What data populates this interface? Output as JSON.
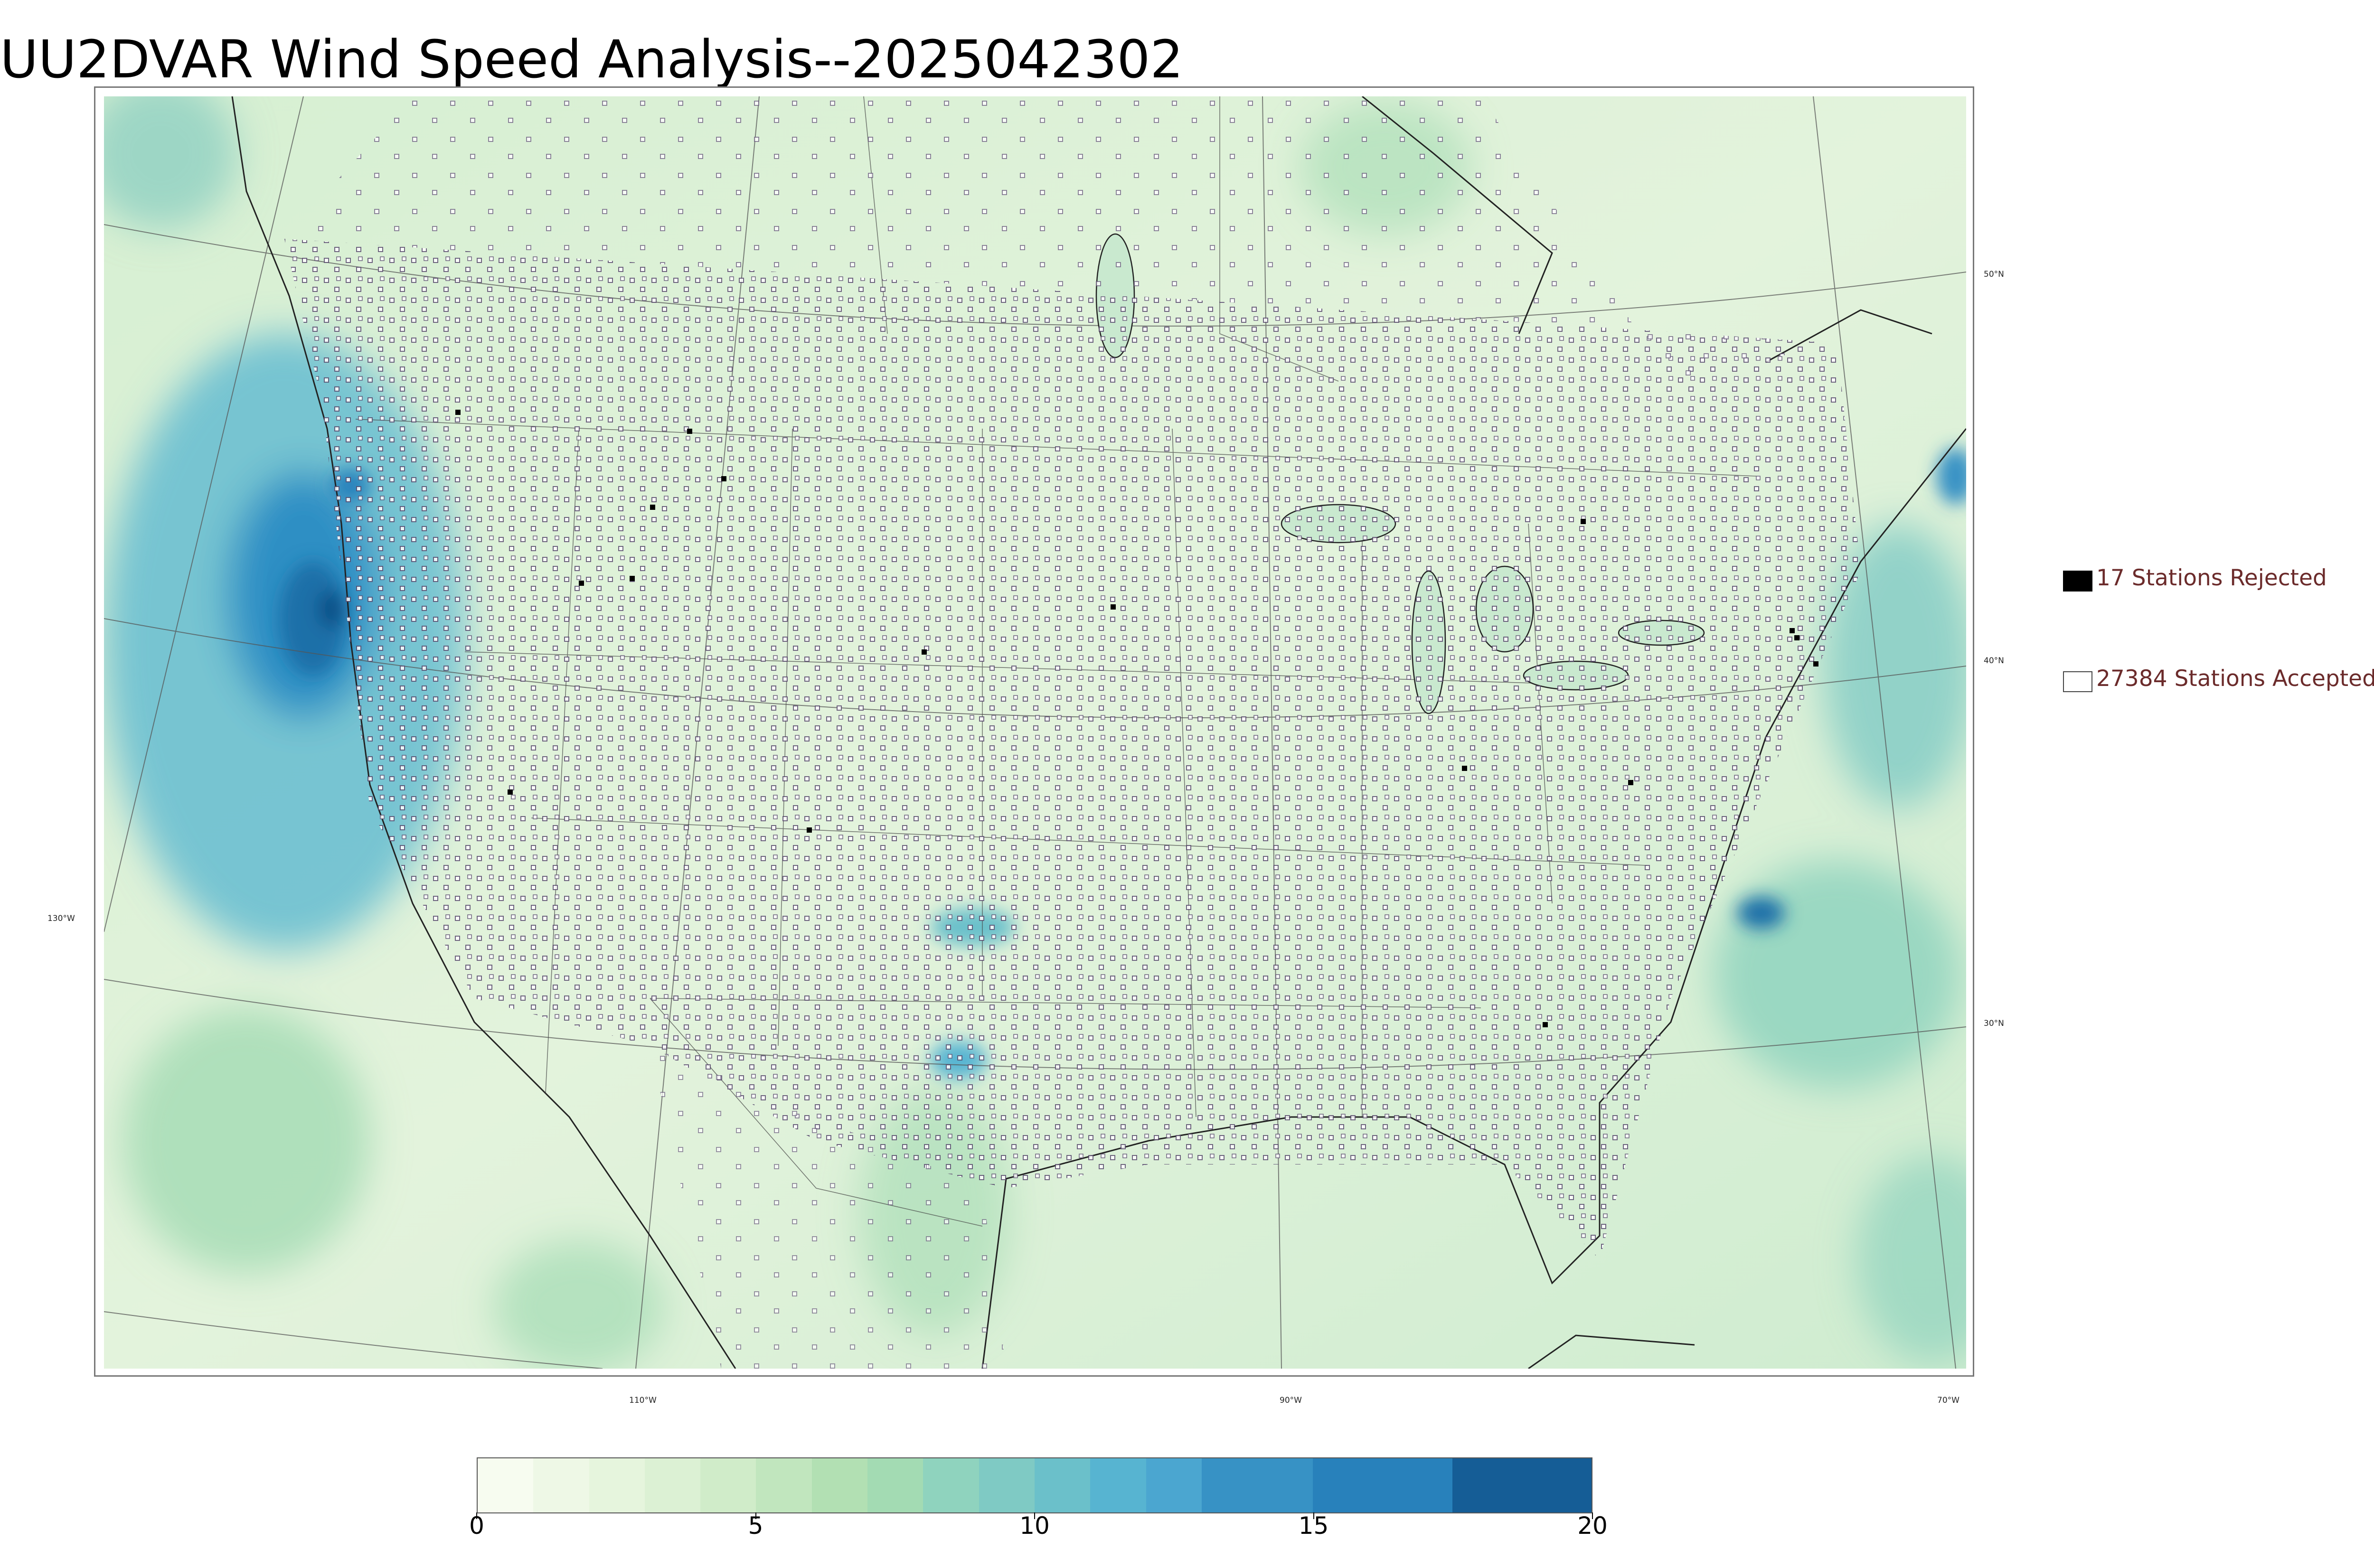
{
  "title": "UU2DVAR Wind Speed Analysis--2025042302",
  "map": {
    "graticule_labels": {
      "latitudes": [
        "50°N",
        "40°N",
        "30°N"
      ],
      "longitudes": [
        "110°W",
        "90°W",
        "70°W"
      ],
      "left_longitude": "130°W"
    },
    "colors": {
      "land_base": "#dff0d6",
      "ocean_base": "#c9e9cf",
      "strong_wind": "#1f7db8",
      "very_strong_wind": "#155b93",
      "station_marker_edge": "#5a4b6e",
      "boundary": "#333333"
    }
  },
  "legend": {
    "rejected": {
      "label": "17 Stations Rejected",
      "swatch": "#000000"
    },
    "accepted": {
      "label": "27384 Stations Accepted",
      "swatch": "#ffffff"
    }
  },
  "colorbar": {
    "min": 0,
    "max": 20,
    "ticks": [
      "0",
      "5",
      "10",
      "15",
      "20"
    ],
    "colors": [
      "#f7fcf0",
      "#eef8e6",
      "#e6f5dd",
      "#dcf1d4",
      "#d0ecc9",
      "#c1e6be",
      "#b2e0b3",
      "#a3dbb3",
      "#8fd3be",
      "#7fcac4",
      "#6bc0ca",
      "#57b4d1",
      "#4ba6d0",
      "#3792c5",
      "#2881bb",
      "#155d96"
    ],
    "boundaries": [
      0,
      1,
      2,
      3,
      4,
      5,
      6,
      7,
      8,
      9,
      10,
      11,
      12,
      13,
      15,
      17.5,
      20
    ]
  }
}
